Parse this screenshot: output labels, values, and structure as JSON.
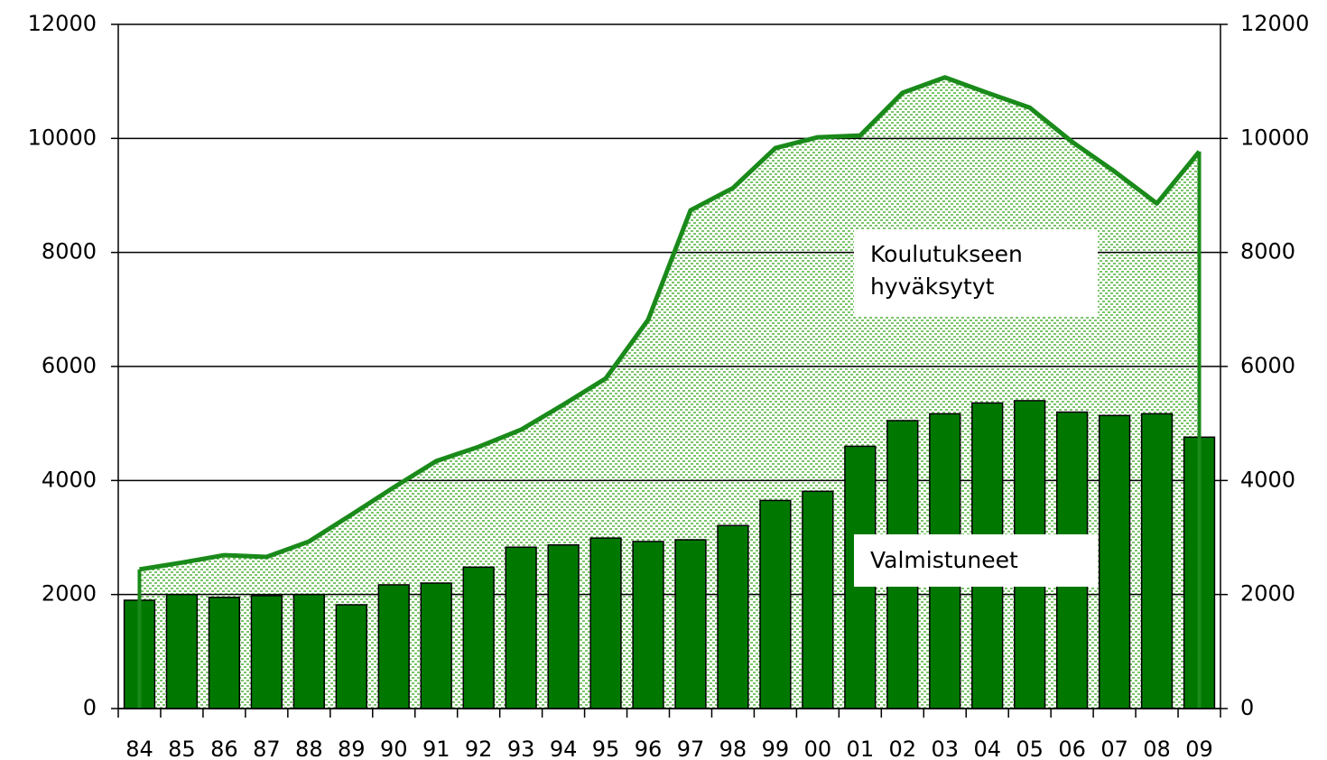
{
  "chart_data": {
    "type": "bar+area",
    "categories": [
      "84",
      "85",
      "86",
      "87",
      "88",
      "89",
      "90",
      "91",
      "92",
      "93",
      "94",
      "95",
      "96",
      "97",
      "98",
      "99",
      "00",
      "01",
      "02",
      "03",
      "04",
      "05",
      "06",
      "07",
      "08",
      "09"
    ],
    "series": [
      {
        "name": "Koulutukseen hyväksytyt",
        "type": "area",
        "color": "#1a8a1a",
        "fill": "#8fcf7f",
        "values": [
          2440,
          2560,
          2690,
          2660,
          2930,
          3400,
          3880,
          4340,
          4590,
          4890,
          5330,
          5790,
          6820,
          8740,
          9130,
          9830,
          10020,
          10050,
          10800,
          11070,
          10800,
          10540,
          9940,
          9420,
          8860,
          9770
        ]
      },
      {
        "name": "Valmistuneet",
        "type": "bar",
        "color": "#007800",
        "values": [
          1900,
          2000,
          1950,
          1980,
          2000,
          1820,
          2170,
          2200,
          2480,
          2830,
          2870,
          2990,
          2930,
          2960,
          3210,
          3650,
          3810,
          4600,
          5050,
          5170,
          5360,
          5400,
          5200,
          5140,
          5170,
          4760
        ]
      }
    ],
    "ylim": [
      0,
      12000
    ],
    "yticks": [
      0,
      2000,
      4000,
      6000,
      8000,
      10000,
      12000
    ],
    "y2lim": [
      0,
      12000
    ],
    "y2ticks": [
      0,
      2000,
      4000,
      6000,
      8000,
      10000,
      12000
    ],
    "grid": true
  }
}
